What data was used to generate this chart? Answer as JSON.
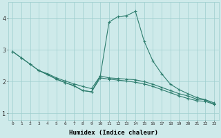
{
  "bg_color": "#ceeaea",
  "grid_color": "#9ecece",
  "line_color": "#2e7d6e",
  "xlabel": "Humidex (Indice chaleur)",
  "ylim": [
    0.8,
    4.5
  ],
  "xlim": [
    -0.5,
    23.5
  ],
  "yticks": [
    1,
    2,
    3,
    4
  ],
  "xticks": [
    0,
    1,
    2,
    3,
    4,
    5,
    6,
    7,
    8,
    9,
    10,
    11,
    12,
    13,
    14,
    15,
    16,
    17,
    18,
    19,
    20,
    21,
    22,
    23
  ],
  "lines": [
    {
      "x": [
        0,
        1,
        2,
        3,
        4,
        5,
        6,
        7,
        8,
        9,
        10,
        11,
        12,
        13,
        14,
        15,
        16,
        17,
        18,
        19,
        20,
        21,
        22,
        23
      ],
      "y": [
        2.95,
        2.75,
        2.55,
        2.35,
        2.25,
        2.12,
        2.02,
        1.93,
        1.85,
        1.78,
        2.18,
        2.12,
        2.1,
        2.08,
        2.06,
        2.0,
        1.92,
        1.82,
        1.72,
        1.62,
        1.55,
        1.45,
        1.43,
        1.33
      ]
    },
    {
      "x": [
        0,
        1,
        2,
        3,
        4,
        5,
        6,
        7,
        8,
        9,
        10,
        11,
        12,
        13,
        14,
        15,
        16,
        17,
        18,
        19,
        20,
        21,
        22,
        23
      ],
      "y": [
        2.95,
        2.75,
        2.55,
        2.35,
        2.22,
        2.08,
        1.97,
        1.87,
        1.72,
        1.68,
        2.12,
        2.08,
        2.05,
        2.02,
        1.98,
        1.93,
        1.85,
        1.75,
        1.65,
        1.55,
        1.47,
        1.4,
        1.38,
        1.28
      ]
    },
    {
      "x": [
        3,
        4,
        5,
        6,
        7,
        8,
        9,
        10,
        11,
        12,
        13,
        14,
        15,
        16,
        17,
        18,
        19,
        20,
        21,
        22,
        23
      ],
      "y": [
        2.35,
        2.22,
        2.08,
        1.97,
        1.87,
        1.72,
        1.68,
        2.18,
        3.88,
        4.05,
        4.08,
        4.22,
        3.28,
        2.65,
        2.25,
        1.92,
        1.75,
        1.62,
        1.5,
        1.43,
        1.28
      ]
    }
  ]
}
